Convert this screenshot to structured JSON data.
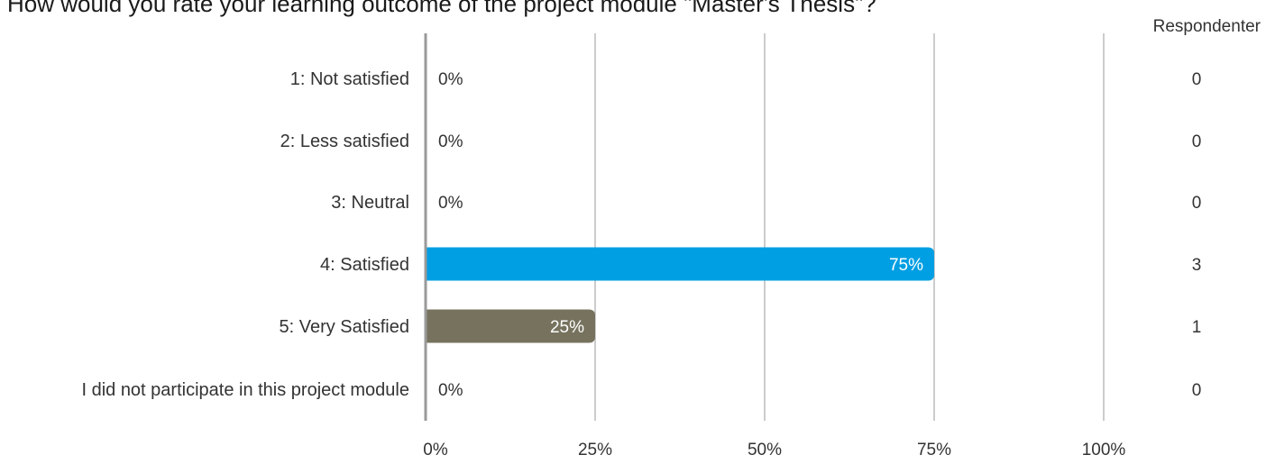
{
  "chart_data": {
    "type": "bar",
    "orientation": "horizontal",
    "title": "How would you rate your learning outcome of the project module \"Master's Thesis\"?",
    "count_header": "Respondenter",
    "categories": [
      "1: Not satisfied",
      "2: Less satisfied",
      "3: Neutral",
      "4: Satisfied",
      "5: Very Satisfied",
      "I did not participate in this project module"
    ],
    "values": [
      0,
      0,
      0,
      75,
      25,
      0
    ],
    "value_labels": [
      "0%",
      "0%",
      "0%",
      "75%",
      "25%",
      "0%"
    ],
    "counts": [
      0,
      0,
      0,
      3,
      1,
      0
    ],
    "bar_colors": [
      "#009fe3",
      "#009fe3",
      "#009fe3",
      "#009fe3",
      "#76725e",
      "#009fe3"
    ],
    "x_ticks": [
      0,
      25,
      50,
      75,
      100
    ],
    "x_tick_labels": [
      "0%",
      "25%",
      "50%",
      "75%",
      "100%"
    ],
    "xlim": [
      0,
      100
    ],
    "grid": true
  }
}
